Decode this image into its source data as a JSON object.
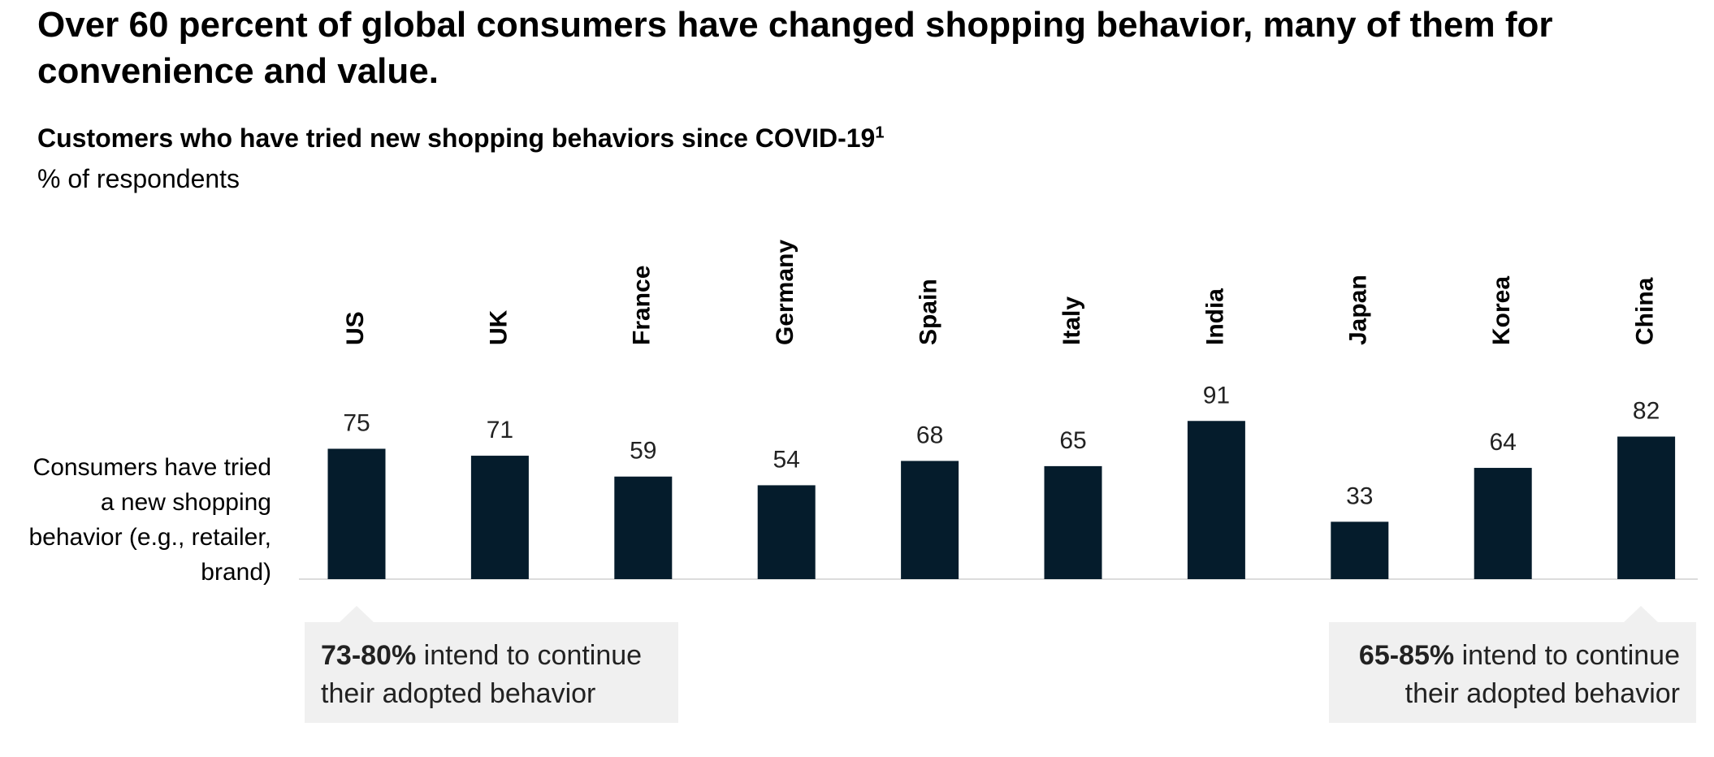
{
  "chart_data": {
    "type": "bar",
    "title": "Over 60 percent of global consumers have changed shopping behavior, many of them for convenience and value.",
    "subtitle": "Customers who have tried new shopping behaviors since COVID-19",
    "footnote_marker": "1",
    "units": "% of respondents",
    "row_label": "Consumers have tried a new shopping behavior (e.g., retailer, brand)",
    "categories": [
      "US",
      "UK",
      "France",
      "Germany",
      "Spain",
      "Italy",
      "India",
      "Japan",
      "Korea",
      "China"
    ],
    "values": [
      75,
      71,
      59,
      54,
      68,
      65,
      91,
      33,
      64,
      82
    ],
    "color": "#051c2c",
    "annotations": [
      {
        "highlight": "73-80%",
        "text": "intend to continue their adopted behavior"
      },
      {
        "highlight": "65-85%",
        "text": "intend to continue their adopted behavior"
      }
    ]
  }
}
